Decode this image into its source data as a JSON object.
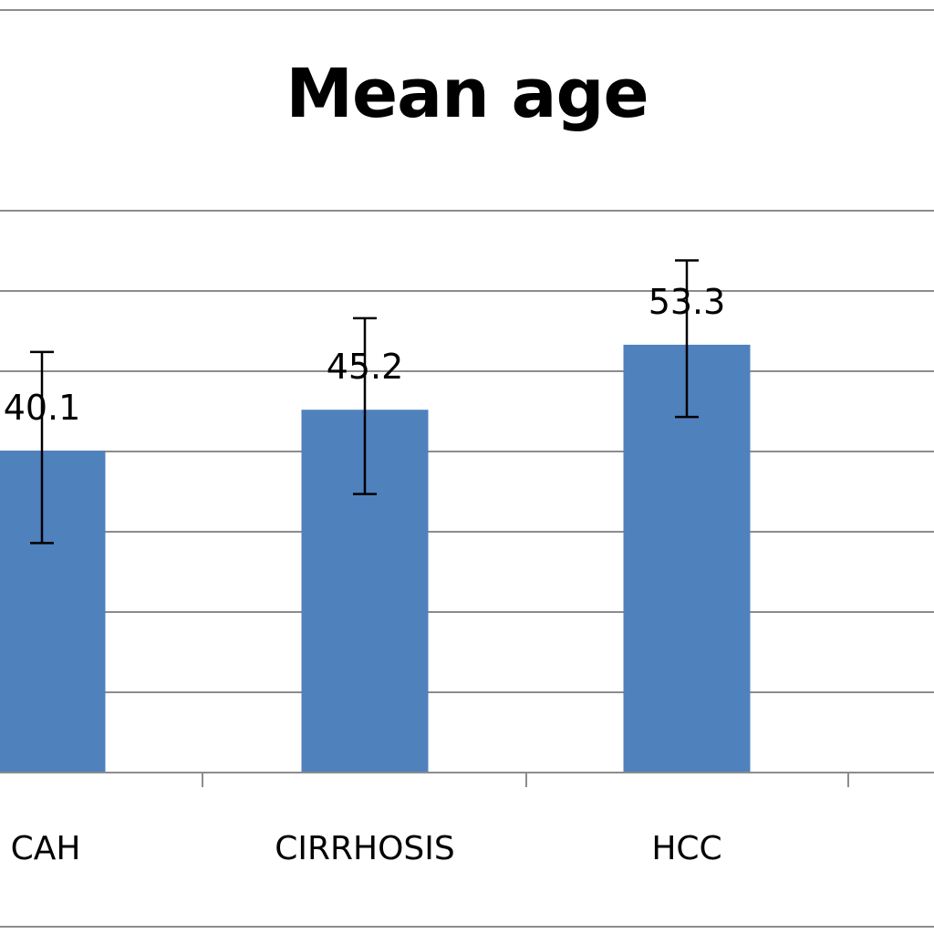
{
  "chart_data": {
    "type": "bar",
    "title": "Mean age",
    "categories": [
      "CAH",
      "CIRRHOSIS",
      "HCC"
    ],
    "values": [
      40.1,
      45.2,
      53.3
    ],
    "error_low": [
      28.6,
      34.7,
      44.3
    ],
    "error_high": [
      52.4,
      56.6,
      63.8
    ],
    "data_labels": [
      "40.1",
      "45.2",
      "53.3"
    ],
    "ylim": [
      0,
      70
    ],
    "grid": true,
    "legend": "none"
  },
  "colors": {
    "bar": "#4f81bd",
    "grid": "#8c8c8c",
    "error_bar": "#000000"
  }
}
